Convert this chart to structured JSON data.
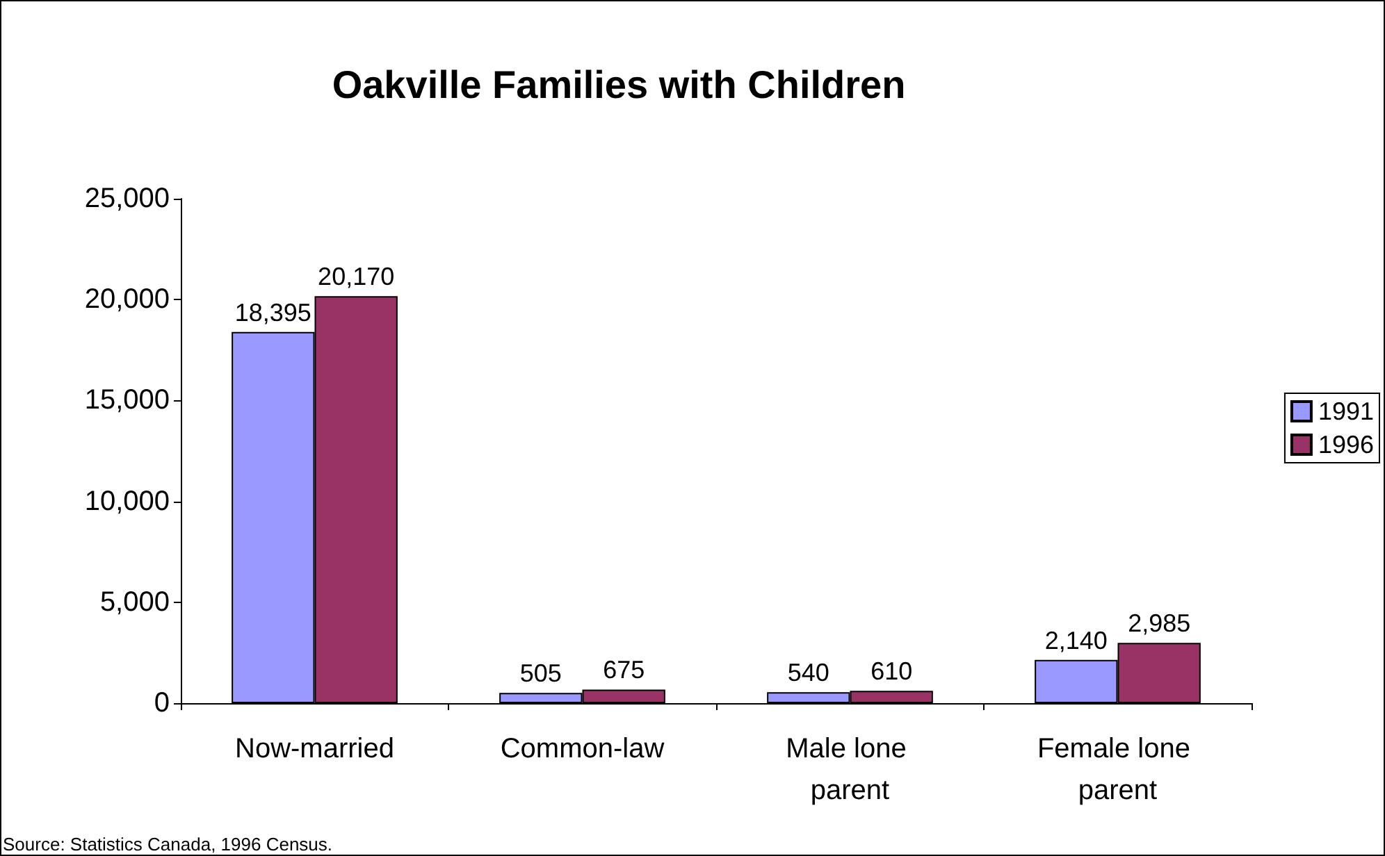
{
  "chart_data": {
    "type": "bar",
    "title": "Oakville Families with Children",
    "categories": [
      "Now-married",
      "Common-law",
      "Male lone parent",
      "Female lone parent"
    ],
    "series": [
      {
        "name": "1991",
        "color": "#9999ff",
        "values": [
          18395,
          505,
          540,
          2140
        ],
        "value_labels": [
          "18,395",
          "505",
          "540",
          "2,140"
        ]
      },
      {
        "name": "1996",
        "color": "#993366",
        "values": [
          20170,
          675,
          610,
          2985
        ],
        "value_labels": [
          "20,170",
          "675",
          "610",
          "2,985"
        ]
      }
    ],
    "ylim": [
      0,
      25000
    ],
    "yticks": [
      0,
      {
        "value": 5000,
        "label": "5,000"
      },
      {
        "value": 10000,
        "label": "10,000"
      },
      {
        "value": 15000,
        "label": "15,000"
      },
      {
        "value": 20000,
        "label": "20,000"
      },
      {
        "value": 25000,
        "label": "25,000"
      }
    ],
    "grid": false,
    "legend": "right",
    "annotations": [
      "Source: Statistics Canada, 1996 Census."
    ]
  }
}
